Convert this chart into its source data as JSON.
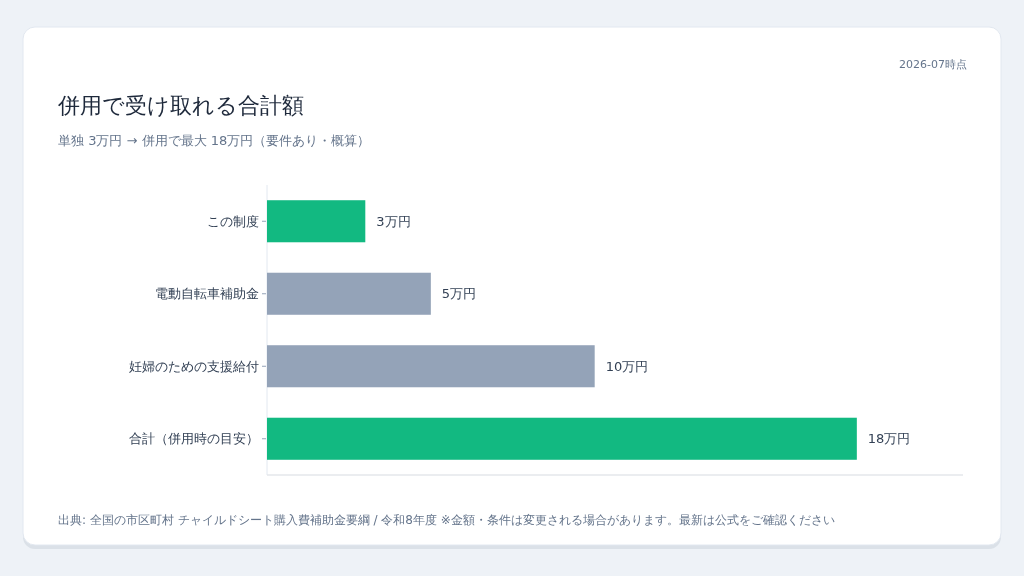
{
  "chart_data": {
    "type": "bar",
    "orientation": "horizontal",
    "title": "併用で受け取れる合計額",
    "subtitle": "単独 3万円 → 併用で最大 18万円（要件あり・概算）",
    "categories": [
      "この制度",
      "電動自転車補助金",
      "妊婦のための支援給付",
      "合計（併用時の目安）"
    ],
    "values": [
      3,
      5,
      10,
      18
    ],
    "colors": [
      "#12b981",
      "#94a3b8",
      "#94a3b8",
      "#12b981"
    ],
    "value_labels": [
      "3万円",
      "5万円",
      "10万円",
      "18万円"
    ],
    "annotations": [
      "2026-07時点",
      "出典: 全国の市区町村 チャイルドシート購入費補助金要綱 / 令和8年度 ※金額・条件は変更される場合があります。最新は公式をご確認ください"
    ]
  }
}
